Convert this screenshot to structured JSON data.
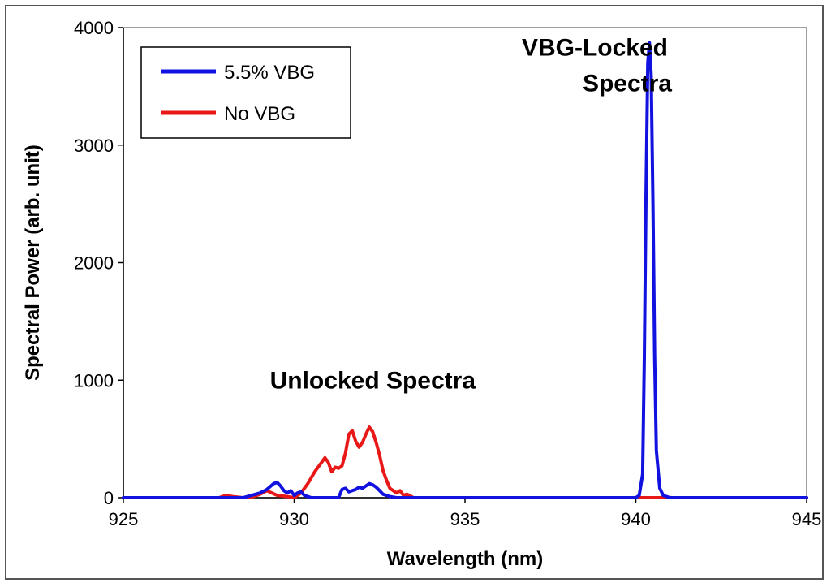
{
  "chart_data": {
    "type": "line",
    "title": "",
    "xlabel": "Wavelength (nm)",
    "ylabel": "Spectral Power (arb. unit)",
    "xlim": [
      925,
      945
    ],
    "ylim": [
      0,
      4000
    ],
    "xticks": [
      925,
      930,
      935,
      940,
      945
    ],
    "yticks": [
      0,
      1000,
      2000,
      3000,
      4000
    ],
    "grid": false,
    "legend_position": "top-left",
    "annotations": [
      {
        "text_lines": [
          "VBG-Locked",
          "Spectra"
        ],
        "x": 938.8,
        "y": 3760
      },
      {
        "text_lines": [
          "Unlocked Spectra"
        ],
        "x": 932.3,
        "y": 930
      }
    ],
    "series": [
      {
        "name": "5.5% VBG",
        "color": "#1212e0",
        "x": [
          925,
          928.5,
          929.0,
          929.2,
          929.4,
          929.5,
          929.6,
          929.7,
          929.8,
          929.9,
          930.0,
          930.1,
          930.2,
          930.3,
          930.5,
          931.3,
          931.4,
          931.5,
          931.6,
          931.7,
          931.8,
          931.9,
          932.0,
          932.1,
          932.2,
          932.3,
          932.4,
          932.5,
          932.6,
          932.8,
          933.0,
          940.0,
          940.1,
          940.2,
          940.25,
          940.3,
          940.35,
          940.4,
          940.45,
          940.5,
          940.55,
          940.6,
          940.7,
          940.8,
          941.0,
          945
        ],
        "y": [
          0,
          0,
          40,
          70,
          120,
          130,
          100,
          60,
          40,
          60,
          20,
          40,
          50,
          20,
          0,
          0,
          70,
          80,
          50,
          60,
          70,
          90,
          80,
          100,
          120,
          110,
          90,
          60,
          30,
          10,
          0,
          0,
          20,
          200,
          1200,
          2600,
          3700,
          3870,
          3600,
          2500,
          1200,
          400,
          80,
          20,
          0,
          0
        ]
      },
      {
        "name": "No VBG",
        "color": "#e81818",
        "x": [
          925,
          927.8,
          928.0,
          928.2,
          928.5,
          928.8,
          929.0,
          929.2,
          929.5,
          929.8,
          930.0,
          930.2,
          930.4,
          930.6,
          930.8,
          930.9,
          931.0,
          931.1,
          931.2,
          931.3,
          931.4,
          931.5,
          931.6,
          931.7,
          931.8,
          931.9,
          932.0,
          932.1,
          932.2,
          932.3,
          932.4,
          932.5,
          932.6,
          932.7,
          932.8,
          932.9,
          933.0,
          933.1,
          933.2,
          933.3,
          933.5,
          945
        ],
        "y": [
          0,
          0,
          20,
          10,
          0,
          10,
          30,
          60,
          20,
          10,
          0,
          40,
          120,
          220,
          300,
          340,
          300,
          220,
          260,
          250,
          270,
          380,
          540,
          570,
          480,
          430,
          470,
          540,
          600,
          560,
          470,
          360,
          230,
          150,
          80,
          60,
          40,
          60,
          20,
          30,
          0,
          0
        ]
      }
    ]
  }
}
